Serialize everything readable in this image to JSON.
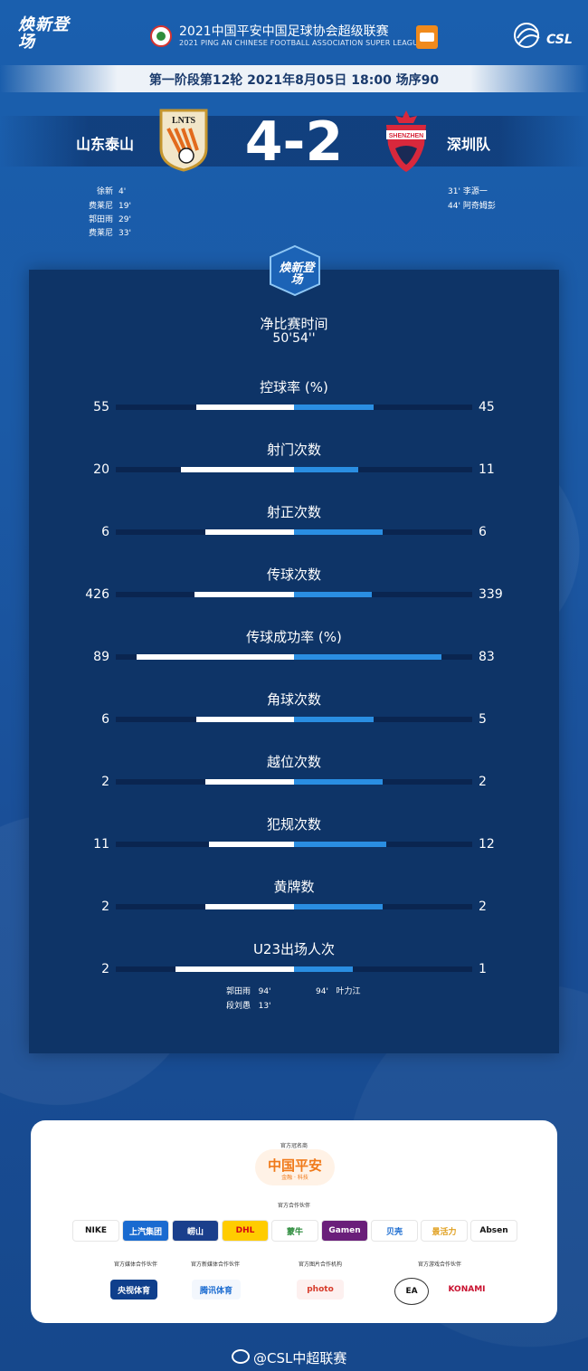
{
  "header": {
    "brand_logo": "焕新登场",
    "league_title": "2021中国平安中国足球协会超级联赛",
    "league_subtitle": "2021 PING AN CHINESE FOOTBALL ASSOCIATION SUPER LEAGUE",
    "csl_text": "CSL"
  },
  "match": {
    "info": "第一阶段第12轮  2021年8月05日  18:00  场序90",
    "home_team": "山东泰山",
    "away_team": "深圳队",
    "score": "4-2",
    "home_logo_text": "LNTS",
    "away_logo_text": "SHENZHEN",
    "home_goals": [
      {
        "player": "徐新",
        "minute": "4'"
      },
      {
        "player": "费莱尼",
        "minute": "19'"
      },
      {
        "player": "郭田雨",
        "minute": "29'"
      },
      {
        "player": "费莱尼",
        "minute": "33'"
      }
    ],
    "away_goals": [
      {
        "minute": "31'",
        "player": "李源一"
      },
      {
        "minute": "44'",
        "player": "阿奇姆彭"
      }
    ]
  },
  "panel": {
    "logo_text": "焕新登场",
    "net_time_title": "净比赛时间",
    "net_time_value": "50'54''"
  },
  "stats": [
    {
      "label": "控球率 (%)",
      "home": "55",
      "away": "45",
      "home_frac": 0.55,
      "away_frac": 0.45
    },
    {
      "label": "射门次数",
      "home": "20",
      "away": "11",
      "home_frac": 0.64,
      "away_frac": 0.36
    },
    {
      "label": "射正次数",
      "home": "6",
      "away": "6",
      "home_frac": 0.5,
      "away_frac": 0.5
    },
    {
      "label": "传球次数",
      "home": "426",
      "away": "339",
      "home_frac": 0.56,
      "away_frac": 0.44
    },
    {
      "label": "传球成功率 (%)",
      "home": "89",
      "away": "83",
      "home_frac": 0.89,
      "away_frac": 0.83
    },
    {
      "label": "角球次数",
      "home": "6",
      "away": "5",
      "home_frac": 0.55,
      "away_frac": 0.45
    },
    {
      "label": "越位次数",
      "home": "2",
      "away": "2",
      "home_frac": 0.5,
      "away_frac": 0.5
    },
    {
      "label": "犯规次数",
      "home": "11",
      "away": "12",
      "home_frac": 0.48,
      "away_frac": 0.52
    },
    {
      "label": "黄牌数",
      "home": "2",
      "away": "2",
      "home_frac": 0.5,
      "away_frac": 0.5
    },
    {
      "label": "U23出场人次",
      "home": "2",
      "away": "1",
      "home_frac": 0.67,
      "away_frac": 0.33
    }
  ],
  "u23": {
    "home": [
      {
        "player": "郭田雨",
        "minute": "94'"
      },
      {
        "player": "段刘愚",
        "minute": "13'"
      }
    ],
    "away": [
      {
        "minute": "94'",
        "player": "叶力江"
      }
    ]
  },
  "sponsors": {
    "title_sponsor_head": "官方冠名商",
    "title_sponsor": "中国平安",
    "title_sponsor_sub": "金融 · 科技",
    "partners_head": "官方合作伙伴",
    "partners": [
      "NIKE",
      "上汽集团",
      "崂山",
      "DHL",
      "蒙牛",
      "Gamen",
      "贝壳",
      "景活力",
      "Absen"
    ],
    "media_head": "官方媒体合作伙伴",
    "media": "央视体育",
    "new_media_head": "官方新媒体合作伙伴",
    "new_media": "腾讯体育",
    "photo_head": "官方图片合作机构",
    "photo": "photo",
    "games_head": "官方游戏合作伙伴",
    "games": [
      "EA",
      "KONAMI"
    ]
  },
  "footer": {
    "text": "@CSL中超联赛"
  }
}
